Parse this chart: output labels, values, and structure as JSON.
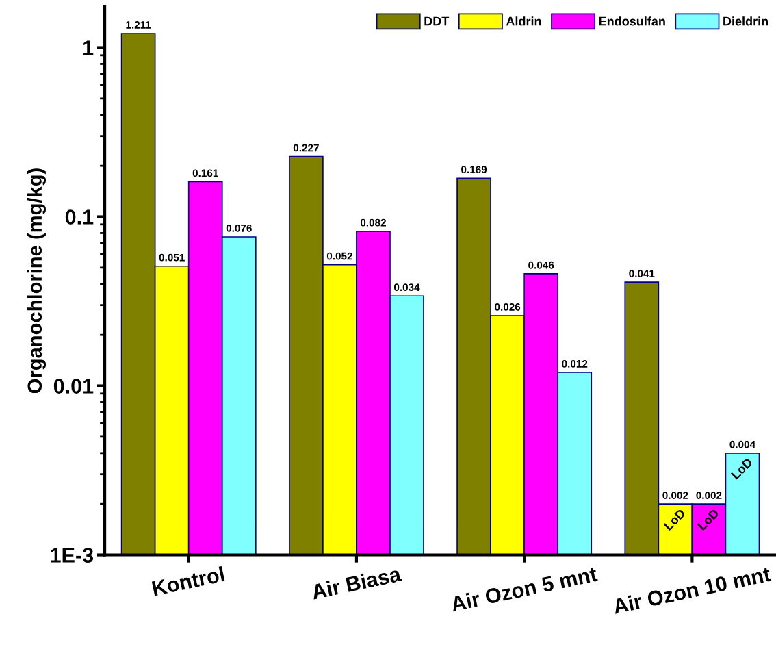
{
  "chart_data": {
    "type": "bar",
    "ylabel": "Organochlorine (mg/kg)",
    "categories": [
      "Kontrol",
      "Air Biasa",
      "Air Ozon 5 mnt",
      "Air Ozon 10 mnt"
    ],
    "series": [
      {
        "name": "DDT",
        "color": "#808000",
        "values": [
          1.211,
          0.227,
          0.169,
          0.041
        ]
      },
      {
        "name": "Aldrin",
        "color": "#ffff00",
        "values": [
          0.051,
          0.052,
          0.026,
          0.002
        ]
      },
      {
        "name": "Endosulfan",
        "color": "#ff00ff",
        "values": [
          0.161,
          0.082,
          0.046,
          0.002
        ]
      },
      {
        "name": "Dieldrin",
        "color": "#80ffff",
        "values": [
          0.076,
          0.034,
          0.012,
          0.004
        ]
      }
    ],
    "log": true,
    "ylim": [
      0.001,
      1.75
    ],
    "yticks": [
      {
        "value": 0.001,
        "label": "1E-3"
      },
      0.01,
      0.1,
      1
    ],
    "data_labels": true,
    "legend": "top right",
    "grid": false,
    "annotations": [
      "LoD",
      "LoD",
      "LoD"
    ]
  }
}
